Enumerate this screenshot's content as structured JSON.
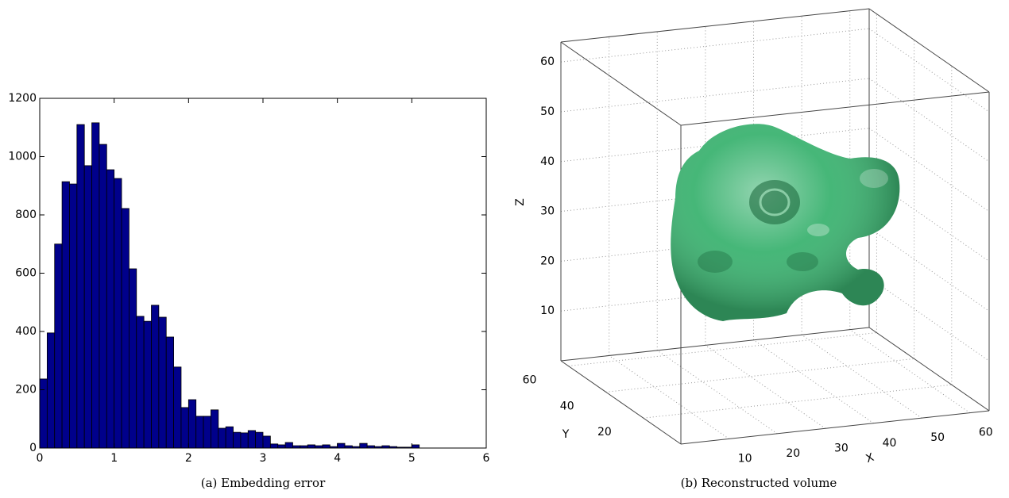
{
  "chart_data": [
    {
      "type": "histogram",
      "caption": "(a) Embedding error",
      "bins": [
        0,
        0.1,
        0.2,
        0.3,
        0.4,
        0.5,
        0.6,
        0.7,
        0.8,
        0.9,
        1.0,
        1.1,
        1.2,
        1.3,
        1.4,
        1.5,
        1.6,
        1.7,
        1.8,
        1.9,
        2.0,
        2.1,
        2.2,
        2.3,
        2.4,
        2.5,
        2.6,
        2.7,
        2.8,
        2.9,
        3.0,
        3.1,
        3.2,
        3.3,
        3.4,
        3.5,
        3.6,
        3.7,
        3.8,
        3.9,
        4.0,
        4.1,
        4.2,
        4.3,
        4.4,
        4.5,
        4.6,
        4.7,
        4.8,
        4.9,
        5.0,
        5.1
      ],
      "values": [
        237,
        395,
        700,
        914,
        906,
        1110,
        969,
        1116,
        1042,
        955,
        925,
        822,
        615,
        452,
        435,
        490,
        449,
        381,
        278,
        139,
        166,
        109,
        109,
        131,
        68,
        73,
        54,
        52,
        60,
        54,
        41,
        14,
        11,
        19,
        8,
        8,
        11,
        8,
        11,
        5,
        16,
        8,
        5,
        16,
        8,
        5,
        8,
        5,
        3,
        3,
        11
      ],
      "color": "#00008b",
      "xlim": [
        0,
        6
      ],
      "xticks": [
        0,
        1,
        2,
        3,
        4,
        5,
        6
      ],
      "ylim": [
        0,
        1200
      ],
      "yticks": [
        0,
        200,
        400,
        600,
        800,
        1000,
        1200
      ]
    },
    {
      "type": "volume",
      "caption": "(b) Reconstructed volume",
      "xlabel": "X",
      "ylabel": "Y",
      "zlabel": "Z",
      "color": "#3cb371",
      "xlim": [
        0,
        64
      ],
      "ylim": [
        0,
        64
      ],
      "zlim": [
        0,
        64
      ],
      "xticks": [
        10,
        20,
        30,
        40,
        50,
        60
      ],
      "yticks": [
        20,
        40,
        60
      ],
      "zticks": [
        10,
        20,
        30,
        40,
        50,
        60
      ]
    }
  ]
}
